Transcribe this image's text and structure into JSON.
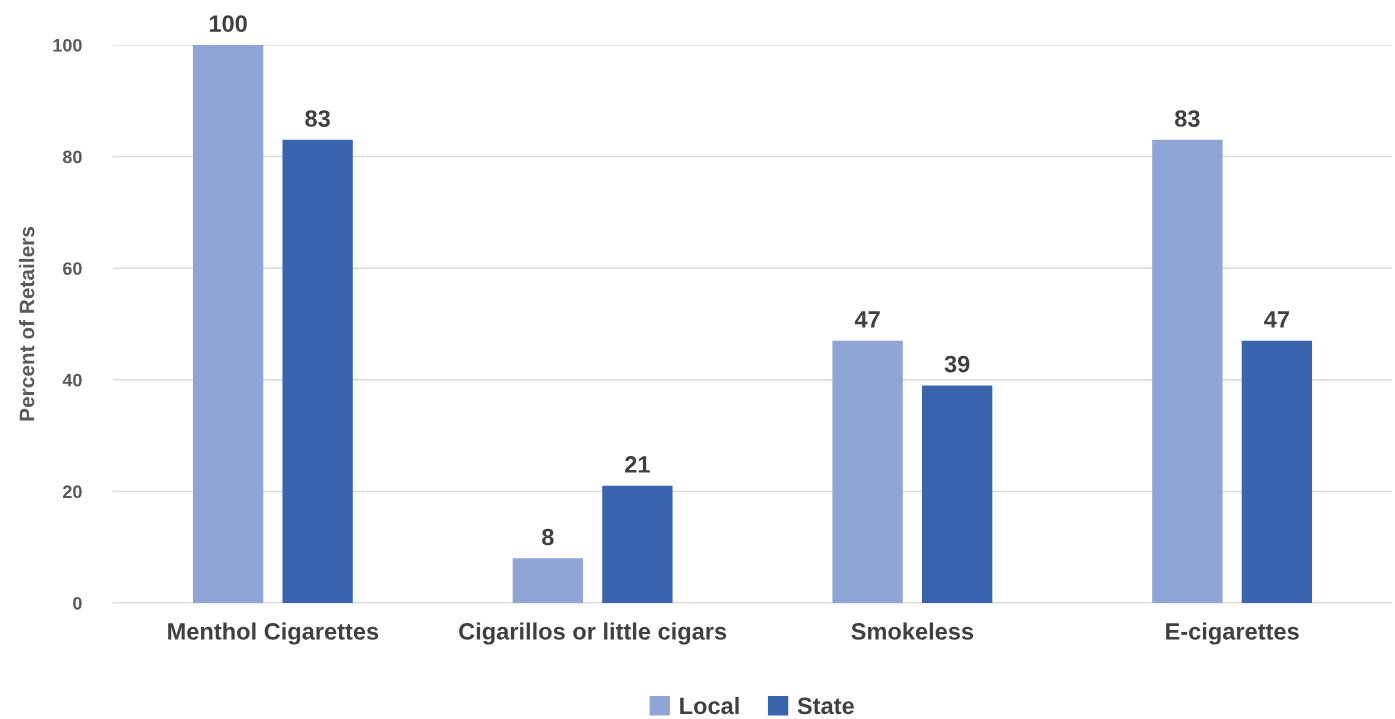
{
  "chart_data": {
    "type": "bar",
    "ylabel": "Percent of Retailers",
    "categories": [
      "Menthol Cigarettes",
      "Cigarillos or little cigars",
      "Smokeless",
      "E-cigarettes"
    ],
    "series": [
      {
        "name": "Local",
        "color": "#8fa5d5",
        "values": [
          100,
          8,
          47,
          83
        ]
      },
      {
        "name": "State",
        "color": "#3a63ad",
        "values": [
          83,
          21,
          39,
          47
        ]
      }
    ],
    "ylim": [
      0,
      100
    ],
    "yticks": [
      0,
      20,
      40,
      60,
      80,
      100
    ],
    "grid": "y",
    "legend": "bottom",
    "data_labels": true
  }
}
